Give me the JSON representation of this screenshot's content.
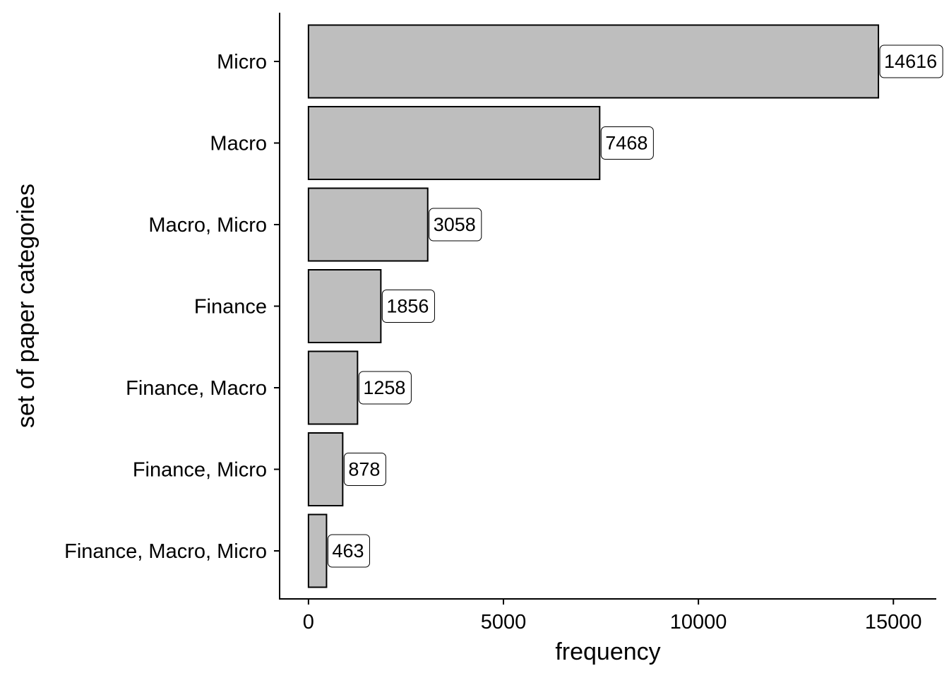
{
  "chart_data": {
    "type": "bar",
    "orientation": "horizontal",
    "title": "",
    "xlabel": "frequency",
    "ylabel": "set of paper categories",
    "categories": [
      "Micro",
      "Macro",
      "Macro, Micro",
      "Finance",
      "Finance, Macro",
      "Finance, Micro",
      "Finance, Macro, Micro"
    ],
    "values": [
      14616,
      7468,
      3058,
      1856,
      1258,
      878,
      463
    ],
    "data_labels": [
      "14616",
      "7468",
      "3058",
      "1856",
      "1258",
      "878",
      "463"
    ],
    "xticks": [
      0,
      5000,
      10000,
      15000
    ],
    "xtick_labels": [
      "0",
      "5000",
      "10000",
      "15000"
    ],
    "xlim": [
      -740,
      16100
    ],
    "grid": false,
    "legend": "none",
    "colors": {
      "bar_fill": "#bebebe",
      "bar_stroke": "#000000",
      "label_fill": "#ffffff"
    }
  }
}
